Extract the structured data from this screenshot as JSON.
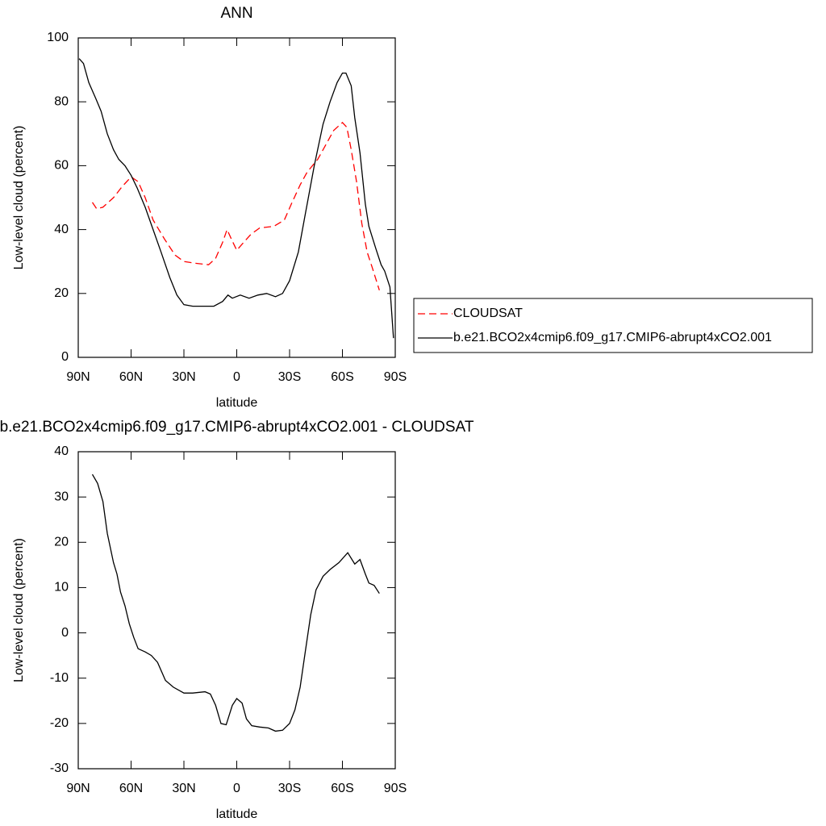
{
  "chart_data": [
    {
      "type": "line",
      "title": "ANN",
      "xlabel": "latitude",
      "ylabel": "Low-level cloud (percent)",
      "xlim": [
        90,
        -90
      ],
      "xticks": [
        {
          "value": 90,
          "label": "90N"
        },
        {
          "value": 60,
          "label": "60N"
        },
        {
          "value": 30,
          "label": "30N"
        },
        0,
        {
          "value": -30,
          "label": "30S"
        },
        {
          "value": -60,
          "label": "60S"
        },
        {
          "value": -90,
          "label": "90S"
        }
      ],
      "ylim": [
        0,
        100
      ],
      "yticks": [
        0,
        20,
        40,
        60,
        80,
        100
      ],
      "legend": "right",
      "series": [
        {
          "name": "CLOUDSAT",
          "color": "#ff0000",
          "linestyle": "dashed",
          "x": [
            82,
            79.5,
            76,
            70,
            65,
            60,
            56,
            52,
            47.5,
            41,
            35,
            30,
            24,
            16,
            12,
            8,
            5.5,
            3,
            0,
            -4,
            -8,
            -13,
            -21,
            -27,
            -31,
            -36,
            -40,
            -46,
            -51,
            -55,
            -60,
            -62.5,
            -65,
            -68,
            -71,
            -74,
            -77,
            -81
          ],
          "values": [
            48.5,
            46.5,
            47,
            50,
            53.5,
            56.5,
            55,
            50,
            43,
            37,
            32,
            30,
            29.5,
            29,
            31,
            36,
            40,
            37,
            33.5,
            36,
            38.5,
            40.5,
            41,
            43,
            48,
            54,
            58,
            62,
            67,
            71,
            73.5,
            72,
            65,
            55,
            42,
            33,
            28,
            21
          ]
        },
        {
          "name": "b.e21.BCO2x4cmip6.f09_g17.CMIP6-abrupt4xCO2.001",
          "color": "#000000",
          "linestyle": "solid",
          "x": [
            89.5,
            87,
            84,
            80,
            77,
            73.5,
            70,
            67,
            63.5,
            60,
            56.5,
            52,
            47.5,
            43,
            38,
            34,
            30,
            25,
            17.5,
            13,
            8,
            5,
            2.5,
            -2,
            -7,
            -12,
            -17,
            -22,
            -26,
            -30,
            -35,
            -39,
            -44,
            -49,
            -53,
            -57,
            -60,
            -62,
            -65,
            -67,
            -70,
            -73,
            -75,
            -79,
            -82,
            -84,
            -87,
            -89
          ],
          "values": [
            93.5,
            92,
            86,
            81,
            77,
            70,
            65,
            62,
            60,
            57,
            53,
            47,
            40,
            33,
            25,
            19.5,
            16.5,
            16,
            16,
            16,
            17.5,
            19.5,
            18.5,
            19.5,
            18.5,
            19.5,
            20,
            19,
            20,
            24,
            33,
            45,
            60,
            73,
            80,
            86,
            89,
            89,
            85,
            75,
            64,
            48,
            41,
            34,
            29,
            27,
            22,
            6
          ]
        }
      ]
    },
    {
      "type": "line",
      "title": "b.e21.BCO2x4cmip6.f09_g17.CMIP6-abrupt4xCO2.001 - CLOUDSAT",
      "xlabel": "latitude",
      "ylabel": "Low-level cloud (percent)",
      "xlim": [
        90,
        -90
      ],
      "xticks": [
        {
          "value": 90,
          "label": "90N"
        },
        {
          "value": 60,
          "label": "60N"
        },
        {
          "value": 30,
          "label": "30N"
        },
        0,
        {
          "value": -30,
          "label": "30S"
        },
        {
          "value": -60,
          "label": "60S"
        },
        {
          "value": -90,
          "label": "90S"
        }
      ],
      "ylim": [
        -30,
        40
      ],
      "yticks": [
        -30,
        -20,
        -10,
        0,
        10,
        20,
        30,
        40
      ],
      "series": [
        {
          "color": "#000000",
          "linestyle": "solid",
          "x": [
            82,
            79,
            76,
            73.5,
            70,
            68,
            66,
            63.5,
            61,
            58.5,
            56,
            52,
            48.5,
            45,
            40.5,
            36,
            30,
            25,
            18,
            15,
            12,
            9,
            6,
            2.5,
            0,
            -3,
            -5.5,
            -8.5,
            -13,
            -18,
            -22,
            -26,
            -30,
            -33,
            -36,
            -39,
            -42,
            -45,
            -49,
            -53,
            -58,
            -63,
            -67,
            -70,
            -73,
            -75,
            -78,
            -81
          ],
          "values": [
            35,
            33,
            29,
            22,
            15.5,
            13,
            9,
            6,
            2,
            -1,
            -3.5,
            -4.2,
            -5,
            -6.5,
            -10.5,
            -12,
            -13.3,
            -13.3,
            -13,
            -13.5,
            -16,
            -20,
            -20.3,
            -16,
            -14.5,
            -15.5,
            -19,
            -20.5,
            -20.8,
            -21,
            -21.7,
            -21.5,
            -20,
            -17,
            -12,
            -4,
            4,
            9.5,
            12.5,
            14,
            15.5,
            17.7,
            15.2,
            16.2,
            13,
            11,
            10.5,
            8.7
          ]
        }
      ]
    }
  ]
}
